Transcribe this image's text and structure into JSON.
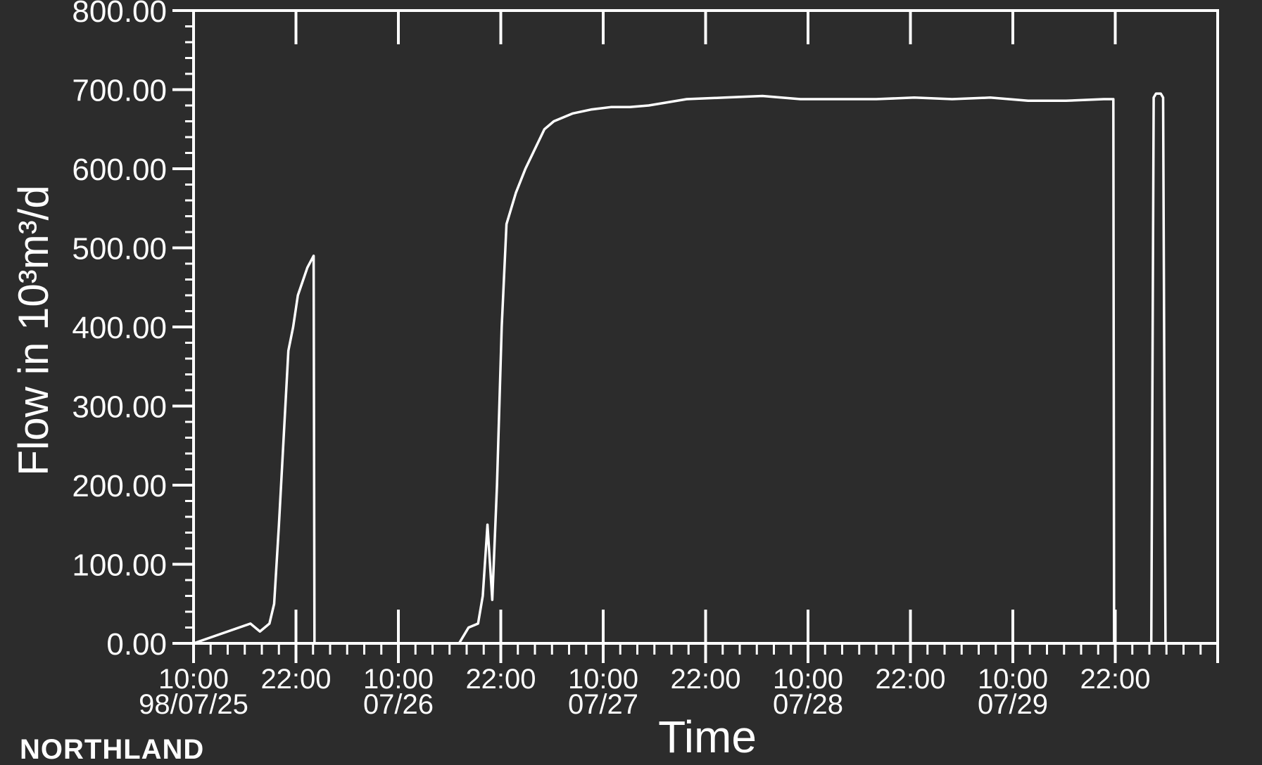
{
  "chart_data": {
    "type": "line",
    "title": "",
    "xlabel": "Time",
    "ylabel": "Flow in 10³m³/d",
    "ylim": [
      0,
      800
    ],
    "xlim_hours": [
      0,
      108
    ],
    "grid": false,
    "y_ticks": [
      "0.00",
      "100.00",
      "200.00",
      "300.00",
      "400.00",
      "500.00",
      "600.00",
      "700.00",
      "800.00"
    ],
    "x_ticks": [
      {
        "time": "10:00",
        "date": "98/07/25"
      },
      {
        "time": "22:00",
        "date": ""
      },
      {
        "time": "10:00",
        "date": "07/26"
      },
      {
        "time": "22:00",
        "date": ""
      },
      {
        "time": "10:00",
        "date": "07/27"
      },
      {
        "time": "22:00",
        "date": ""
      },
      {
        "time": "10:00",
        "date": "07/28"
      },
      {
        "time": "22:00",
        "date": ""
      },
      {
        "time": "10:00",
        "date": "07/29"
      },
      {
        "time": "22:00",
        "date": ""
      }
    ],
    "series": [
      {
        "x": [
          "98/07/25 10:00",
          "98/07/25 16:00",
          "98/07/25 17:00",
          "98/07/25 18:00",
          "98/07/25 18:30",
          "98/07/25 19:00",
          "98/07/25 20:00",
          "98/07/25 20:30",
          "98/07/25 21:00",
          "98/07/25 22:00",
          "98/07/25 22:40",
          "98/07/25 22:45"
        ],
        "y": [
          0,
          25,
          15,
          25,
          50,
          150,
          370,
          400,
          440,
          475,
          490,
          0
        ]
      },
      {
        "x": [
          "98/07/26 14:00",
          "98/07/26 15:00",
          "98/07/26 16:00",
          "98/07/26 16:30",
          "98/07/26 17:00",
          "98/07/26 17:30",
          "98/07/26 18:00",
          "98/07/26 18:30",
          "98/07/26 19:00",
          "98/07/26 20:00",
          "98/07/26 21:00",
          "98/07/26 22:00",
          "98/07/26 23:00",
          "98/07/27 00:00",
          "98/07/27 01:00",
          "98/07/27 02:00",
          "98/07/27 04:00",
          "98/07/27 06:00",
          "98/07/27 08:00",
          "98/07/27 10:00",
          "98/07/27 14:00",
          "98/07/27 18:00",
          "98/07/27 22:00",
          "98/07/28 02:00",
          "98/07/28 06:00",
          "98/07/28 10:00",
          "98/07/28 14:00",
          "98/07/28 18:00",
          "98/07/28 22:00",
          "98/07/29 02:00",
          "98/07/29 06:00",
          "98/07/29 10:00",
          "98/07/29 11:00",
          "98/07/29 11:05"
        ],
        "y": [
          0,
          20,
          25,
          60,
          150,
          55,
          200,
          400,
          530,
          570,
          600,
          625,
          650,
          660,
          665,
          670,
          675,
          678,
          678,
          680,
          688,
          690,
          692,
          688,
          688,
          688,
          690,
          688,
          690,
          686,
          686,
          688,
          688,
          0
        ]
      },
      {
        "x": [
          "98/07/29 15:00",
          "98/07/29 15:15",
          "98/07/29 15:30",
          "98/07/29 16:00",
          "98/07/29 16:15",
          "98/07/29 16:30"
        ],
        "y": [
          0,
          690,
          695,
          695,
          690,
          0
        ]
      }
    ]
  },
  "footer": {
    "org_label": "NORTHLAND"
  },
  "colors": {
    "background": "#2c2c2c",
    "foreground": "#ffffff"
  }
}
